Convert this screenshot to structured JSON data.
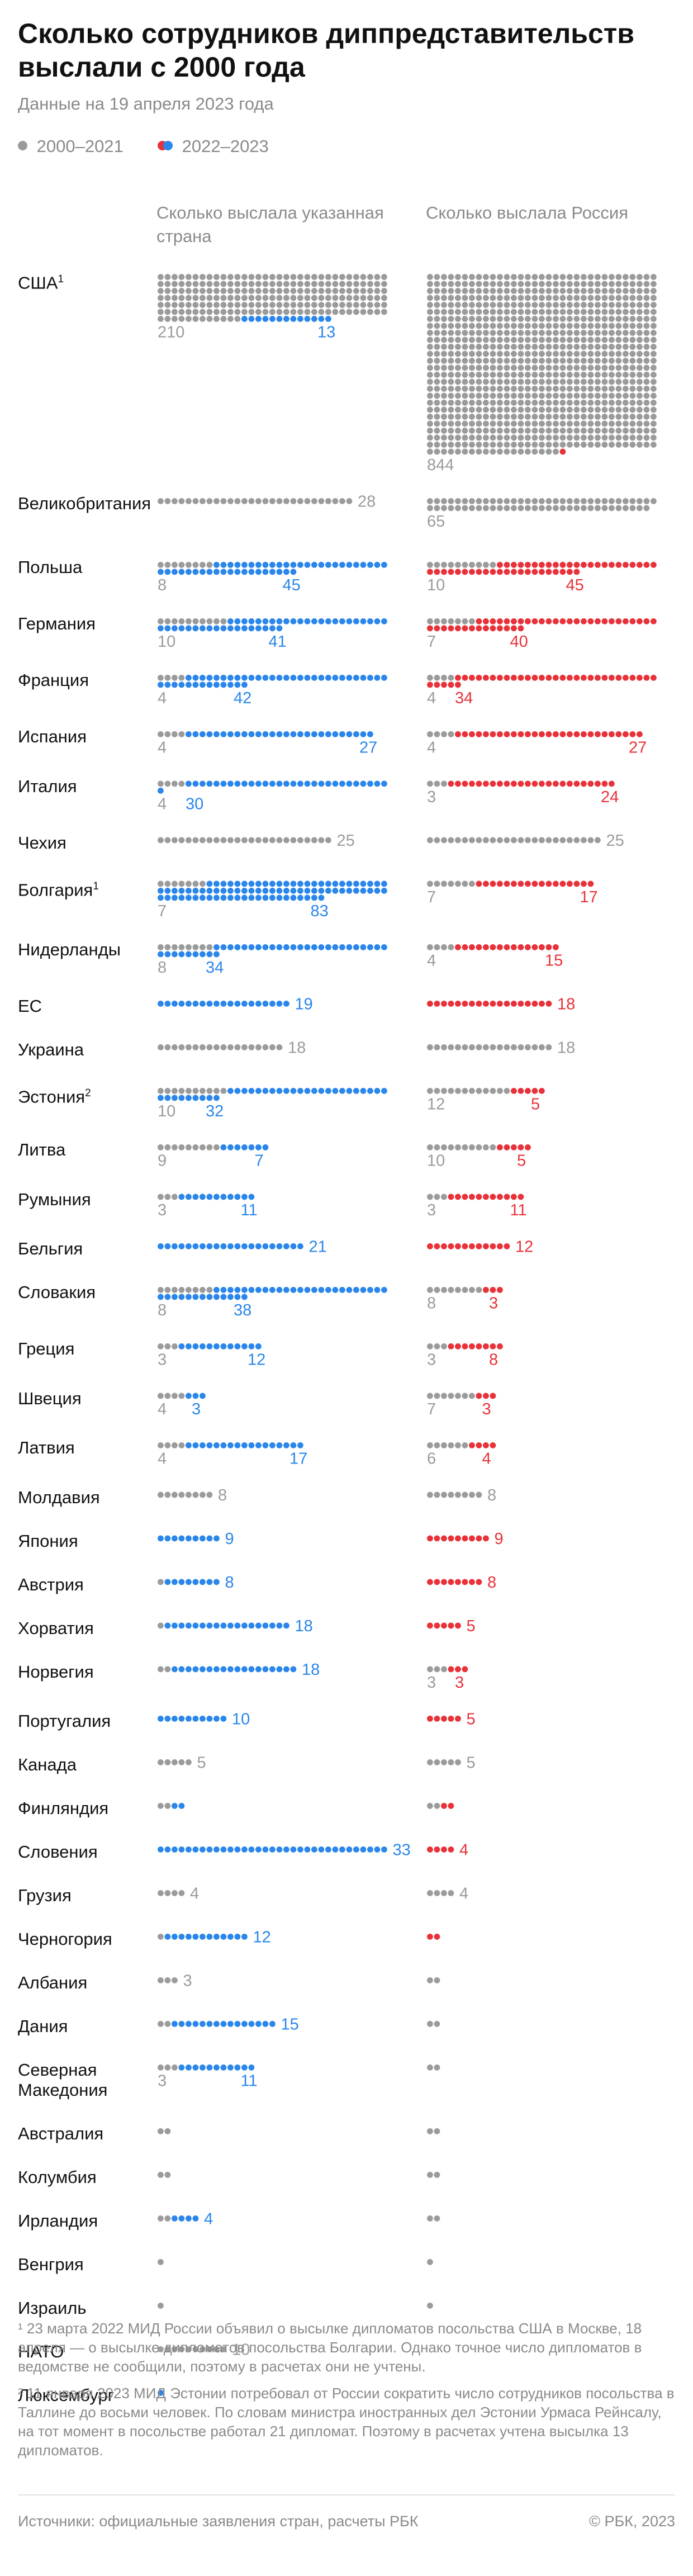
{
  "header": {
    "title": "Сколько сотрудников дипп­редставительств выслали с 2000 года",
    "subtitle": "Данные на 19 апреля 2023 года"
  },
  "legend": [
    {
      "label": "2000–2021",
      "colors": [
        "#9b9b9b"
      ]
    },
    {
      "label": "2022–2023",
      "colors": [
        "#e8323a",
        "#2a86ea"
      ]
    }
  ],
  "columns": {
    "left": "Сколько выслала указанная страна",
    "right": "Сколько выслала Россия"
  },
  "chart_data": {
    "type": "dot-matrix",
    "colors": {
      "old": "#9b9b9b",
      "new_country": "#2a86ea",
      "new_russia": "#e8323a"
    },
    "rows": [
      {
        "label": "США",
        "footnote": "1",
        "country_old": 210,
        "country_new": 13,
        "russia_old": 844,
        "russia_new": 1
      },
      {
        "label": "Великобри­тания",
        "country_old": 28,
        "country_new": 0,
        "russia_old": 65,
        "russia_new": 0
      },
      {
        "label": "Польша",
        "country_old": 8,
        "country_new": 45,
        "russia_old": 10,
        "russia_new": 45
      },
      {
        "label": "Германия",
        "country_old": 10,
        "country_new": 41,
        "russia_old": 7,
        "russia_new": 40
      },
      {
        "label": "Франция",
        "country_old": 4,
        "country_new": 42,
        "russia_old": 4,
        "russia_new": 34
      },
      {
        "label": "Испания",
        "country_old": 4,
        "country_new": 27,
        "russia_old": 4,
        "russia_new": 27
      },
      {
        "label": "Италия",
        "country_old": 4,
        "country_new": 30,
        "russia_old": 3,
        "russia_new": 24
      },
      {
        "label": "Чехия",
        "country_old": 25,
        "country_new": 0,
        "russia_old": 25,
        "russia_new": 0
      },
      {
        "label": "Болгария",
        "footnote": "1",
        "country_old": 7,
        "country_new": 83,
        "russia_old": 7,
        "russia_new": 17
      },
      {
        "label": "Нидерланды",
        "country_old": 8,
        "country_new": 34,
        "russia_old": 4,
        "russia_new": 15
      },
      {
        "label": "ЕС",
        "country_old": 0,
        "country_new": 19,
        "russia_old": 0,
        "russia_new": 18
      },
      {
        "label": "Украина",
        "country_old": 18,
        "country_new": 0,
        "russia_old": 18,
        "russia_new": 0
      },
      {
        "label": "Эстония",
        "footnote": "2",
        "country_old": 10,
        "country_new": 32,
        "russia_old": 12,
        "russia_new": 5
      },
      {
        "label": "Литва",
        "country_old": 9,
        "country_new": 7,
        "russia_old": 10,
        "russia_new": 5
      },
      {
        "label": "Румыния",
        "country_old": 3,
        "country_new": 11,
        "russia_old": 3,
        "russia_new": 11
      },
      {
        "label": "Бельгия",
        "country_old": 0,
        "country_new": 21,
        "russia_old": 0,
        "russia_new": 12
      },
      {
        "label": "Словакия",
        "country_old": 8,
        "country_new": 38,
        "russia_old": 8,
        "russia_new": 3
      },
      {
        "label": "Греция",
        "country_old": 3,
        "country_new": 12,
        "russia_old": 3,
        "russia_new": 8
      },
      {
        "label": "Швеция",
        "country_old": 4,
        "country_new": 3,
        "russia_old": 7,
        "russia_new": 3
      },
      {
        "label": "Латвия",
        "country_old": 4,
        "country_new": 17,
        "russia_old": 6,
        "russia_new": 4
      },
      {
        "label": "Молдавия",
        "country_old": 8,
        "country_new": 0,
        "russia_old": 8,
        "russia_new": 0
      },
      {
        "label": "Япония",
        "country_old": 0,
        "country_new": 9,
        "russia_old": 0,
        "russia_new": 9
      },
      {
        "label": "Австрия",
        "country_old": 1,
        "country_new": 8,
        "russia_old": 0,
        "russia_new": 8
      },
      {
        "label": "Хорватия",
        "country_old": 1,
        "country_new": 18,
        "russia_old": 0,
        "russia_new": 5
      },
      {
        "label": "Норвегия",
        "country_old": 2,
        "country_new": 18,
        "russia_old": 3,
        "russia_new": 3
      },
      {
        "label": "Португалия",
        "country_old": 0,
        "country_new": 10,
        "russia_old": 0,
        "russia_new": 5
      },
      {
        "label": "Канада",
        "country_old": 5,
        "country_new": 0,
        "russia_old": 5,
        "russia_new": 0
      },
      {
        "label": "Финляндия",
        "country_old": 2,
        "country_new": 2,
        "russia_old": 2,
        "russia_new": 2
      },
      {
        "label": "Словения",
        "country_old": 0,
        "country_new": 33,
        "russia_old": 0,
        "russia_new": 4
      },
      {
        "label": "Грузия",
        "country_old": 4,
        "country_new": 0,
        "russia_old": 4,
        "russia_new": 0
      },
      {
        "label": "Черногория",
        "country_old": 1,
        "country_new": 12,
        "russia_old": 0,
        "russia_new": 2
      },
      {
        "label": "Албания",
        "country_old": 3,
        "country_new": 0,
        "russia_old": 2,
        "russia_new": 0
      },
      {
        "label": "Дания",
        "country_old": 2,
        "country_new": 15,
        "russia_old": 2,
        "russia_new": 0
      },
      {
        "label": "Северная Македония",
        "country_old": 3,
        "country_new": 11,
        "russia_old": 2,
        "russia_new": 0
      },
      {
        "label": "Австралия",
        "country_old": 2,
        "country_new": 0,
        "russia_old": 2,
        "russia_new": 0
      },
      {
        "label": "Колумбия",
        "country_old": 2,
        "country_new": 0,
        "russia_old": 2,
        "russia_new": 0
      },
      {
        "label": "Ирландия",
        "country_old": 2,
        "country_new": 4,
        "russia_old": 2,
        "russia_new": 0
      },
      {
        "label": "Венгрия",
        "country_old": 1,
        "country_new": 0,
        "russia_old": 1,
        "russia_new": 0
      },
      {
        "label": "Израиль",
        "country_old": 1,
        "country_new": 0,
        "russia_old": 1,
        "russia_new": 0
      },
      {
        "label": "НАТО",
        "country_old": 10,
        "country_new": 0,
        "russia_old": 0,
        "russia_new": 0
      },
      {
        "label": "Люксембург",
        "country_old": 0,
        "country_new": 1,
        "russia_old": 0,
        "russia_new": 0
      }
    ]
  },
  "footnotes": [
    "¹ 23 марта 2022 МИД России объявил о высылке дипломатов посольства США в Москве, 18 апреля — о высылке дипломатов посольства Болгарии. Однако точное число дипломатов в ведомстве не сообщили, поэтому в расчетах они не учтены.",
    "² 11 января 2023 МИД Эстонии потребовал от России сократить число сотрудников посольства в Таллине до восьми человек. По словам министра иностранных дел Эстонии Урмаса Рейнсалу, на тот момент в посольстве работал 21 дипломат. Поэтому в расчетах учтена высылка 13 дипломатов."
  ],
  "footer": {
    "sources": "Источники: официальные заявления стран, расчеты РБК",
    "copyright": "© РБК, 2023"
  }
}
